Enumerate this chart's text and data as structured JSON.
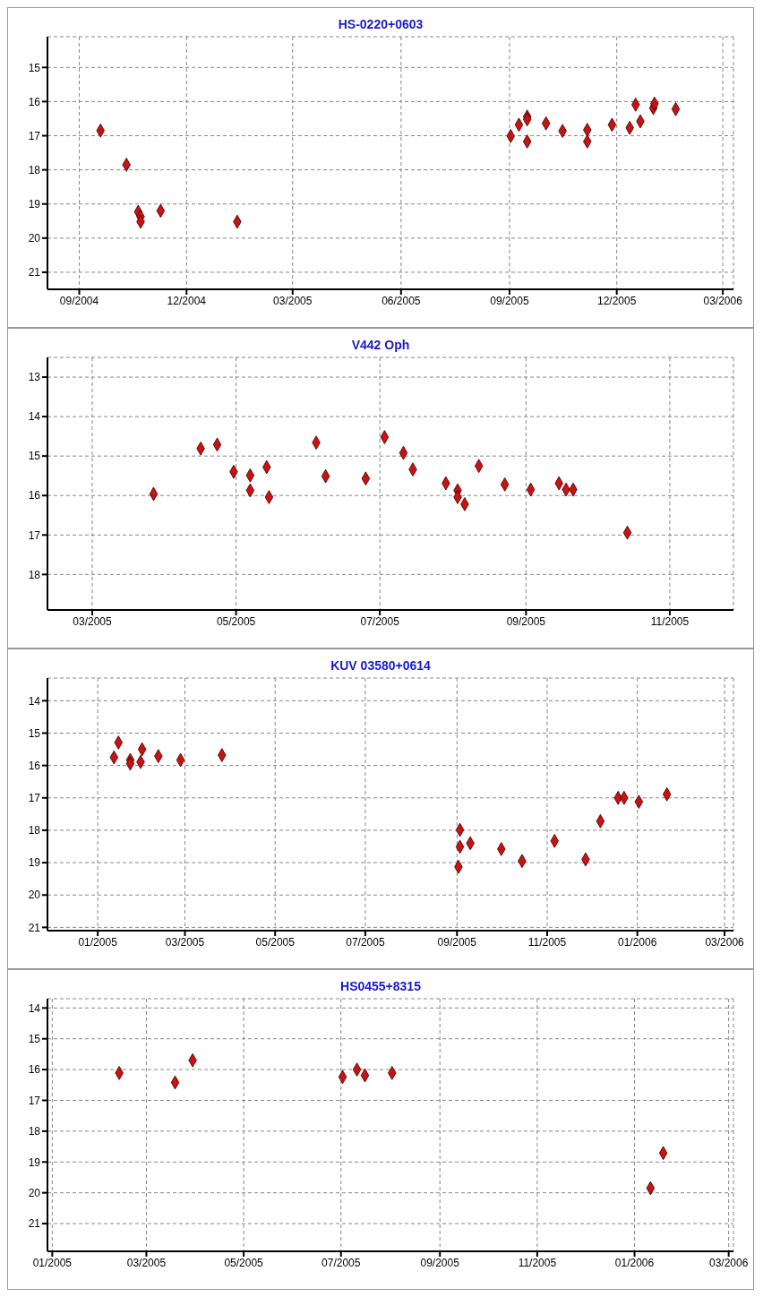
{
  "chart_data": [
    {
      "type": "scatter",
      "title": "HS-0220+0603",
      "marker": "diamond",
      "color": "#cc1111",
      "grid": true,
      "xlim": [
        "2004-08-05",
        "2006-03-10"
      ],
      "xticks": [
        {
          "value": "2004-09-01",
          "label": "09/2004"
        },
        {
          "value": "2004-12-01",
          "label": "12/2004"
        },
        {
          "value": "2005-03-01",
          "label": "03/2005"
        },
        {
          "value": "2005-06-01",
          "label": "06/2005"
        },
        {
          "value": "2005-09-01",
          "label": "09/2005"
        },
        {
          "value": "2005-12-01",
          "label": "12/2005"
        },
        {
          "value": "2006-03-01",
          "label": "03/2006"
        }
      ],
      "ylim": [
        21.5,
        14.1
      ],
      "yticks": [
        15,
        16,
        17,
        18,
        19,
        20,
        21
      ],
      "x": [
        "2004-09-19",
        "2004-10-11",
        "2004-10-21",
        "2004-10-23",
        "2004-10-23",
        "2004-11-09",
        "2005-01-13",
        "2005-09-02",
        "2005-09-09",
        "2005-09-16",
        "2005-09-16",
        "2005-09-16",
        "2005-10-02",
        "2005-10-16",
        "2005-11-06",
        "2005-11-06",
        "2005-11-27",
        "2005-12-12",
        "2005-12-17",
        "2005-12-21",
        "2006-01-01",
        "2006-01-02",
        "2006-01-20"
      ],
      "values": [
        16.85,
        17.85,
        19.23,
        19.37,
        19.52,
        19.2,
        19.52,
        17.01,
        16.68,
        16.44,
        16.52,
        17.17,
        16.64,
        16.86,
        16.83,
        17.17,
        16.68,
        16.77,
        16.09,
        16.58,
        16.19,
        16.06,
        16.22
      ]
    },
    {
      "type": "scatter",
      "title": "V442 Oph",
      "marker": "diamond",
      "color": "#cc1111",
      "grid": true,
      "xlim": [
        "2005-02-10",
        "2005-11-28"
      ],
      "xticks": [
        {
          "value": "2005-03-01",
          "label": "03/2005"
        },
        {
          "value": "2005-05-01",
          "label": "05/2005"
        },
        {
          "value": "2005-07-01",
          "label": "07/2005"
        },
        {
          "value": "2005-09-01",
          "label": "09/2005"
        },
        {
          "value": "2005-11-01",
          "label": "11/2005"
        }
      ],
      "ylim": [
        18.9,
        12.5
      ],
      "yticks": [
        13,
        14,
        15,
        16,
        17,
        18
      ],
      "x": [
        "2005-03-27",
        "2005-04-16",
        "2005-04-23",
        "2005-04-30",
        "2005-05-07",
        "2005-05-07",
        "2005-05-14",
        "2005-05-15",
        "2005-06-04",
        "2005-06-08",
        "2005-06-25",
        "2005-07-03",
        "2005-07-11",
        "2005-07-15",
        "2005-07-29",
        "2005-08-03",
        "2005-08-03",
        "2005-08-06",
        "2005-08-12",
        "2005-08-23",
        "2005-09-03",
        "2005-09-15",
        "2005-09-18",
        "2005-09-21",
        "2005-10-14"
      ],
      "values": [
        15.96,
        14.81,
        14.71,
        15.4,
        15.49,
        15.87,
        15.28,
        16.04,
        14.66,
        15.51,
        15.57,
        14.52,
        14.92,
        15.34,
        15.69,
        15.87,
        16.04,
        16.22,
        15.25,
        15.72,
        15.85,
        15.69,
        15.85,
        15.85,
        16.94
      ]
    },
    {
      "type": "scatter",
      "title": "KUV 03580+0614",
      "marker": "diamond",
      "color": "#cc1111",
      "grid": true,
      "xlim": [
        "2004-11-28",
        "2006-03-07"
      ],
      "xticks": [
        {
          "value": "2005-01-01",
          "label": "01/2005"
        },
        {
          "value": "2005-03-01",
          "label": "03/2005"
        },
        {
          "value": "2005-05-01",
          "label": "05/2005"
        },
        {
          "value": "2005-07-01",
          "label": "07/2005"
        },
        {
          "value": "2005-09-01",
          "label": "09/2005"
        },
        {
          "value": "2005-11-01",
          "label": "11/2005"
        },
        {
          "value": "2006-01-01",
          "label": "01/2006"
        },
        {
          "value": "2006-03-01",
          "label": "03/2006"
        }
      ],
      "ylim": [
        21.1,
        13.3
      ],
      "yticks": [
        14,
        15,
        16,
        17,
        18,
        19,
        20,
        21
      ],
      "x": [
        "2005-01-12",
        "2005-01-15",
        "2005-01-23",
        "2005-01-23",
        "2005-01-30",
        "2005-01-31",
        "2005-02-11",
        "2005-02-26",
        "2005-03-26",
        "2005-09-03",
        "2005-09-03",
        "2005-09-02",
        "2005-09-10",
        "2005-10-01",
        "2005-10-15",
        "2005-11-06",
        "2005-11-27",
        "2005-12-07",
        "2005-12-19",
        "2005-12-23",
        "2006-01-02",
        "2006-01-21"
      ],
      "values": [
        15.75,
        15.29,
        15.83,
        15.94,
        15.89,
        15.5,
        15.71,
        15.83,
        15.68,
        17.99,
        18.51,
        19.13,
        18.4,
        18.58,
        18.95,
        18.33,
        18.9,
        17.72,
        17.0,
        17.0,
        17.12,
        16.89
      ]
    },
    {
      "type": "scatter",
      "title": "HS0455+8315",
      "marker": "diamond",
      "color": "#cc1111",
      "grid": true,
      "xlim": [
        "2004-12-29",
        "2006-03-04"
      ],
      "xticks": [
        {
          "value": "2005-01-01",
          "label": "01/2005"
        },
        {
          "value": "2005-03-01",
          "label": "03/2005"
        },
        {
          "value": "2005-05-01",
          "label": "05/2005"
        },
        {
          "value": "2005-07-01",
          "label": "07/2005"
        },
        {
          "value": "2005-09-01",
          "label": "09/2005"
        },
        {
          "value": "2005-11-01",
          "label": "11/2005"
        },
        {
          "value": "2006-01-01",
          "label": "01/2006"
        },
        {
          "value": "2006-03-01",
          "label": "03/2006"
        }
      ],
      "ylim": [
        21.9,
        13.7
      ],
      "yticks": [
        14,
        15,
        16,
        17,
        18,
        19,
        20,
        21
      ],
      "x": [
        "2005-02-12",
        "2005-03-19",
        "2005-03-30",
        "2005-07-02",
        "2005-07-11",
        "2005-07-16",
        "2005-08-02",
        "2006-01-11",
        "2006-01-19"
      ],
      "values": [
        16.11,
        16.42,
        15.7,
        16.24,
        16.0,
        16.19,
        16.11,
        19.85,
        18.71
      ]
    }
  ]
}
